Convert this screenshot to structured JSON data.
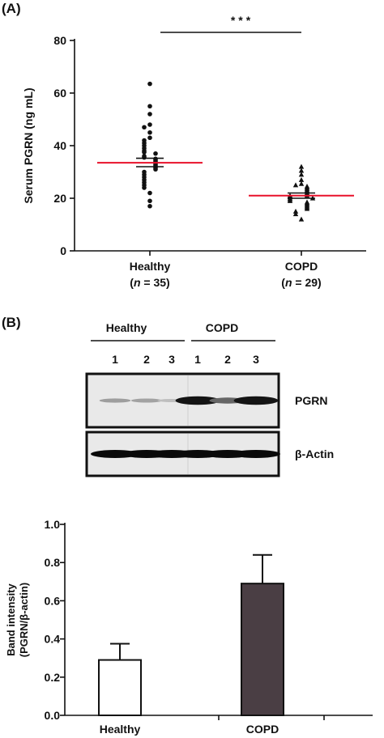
{
  "panel_a": {
    "label": "(A)",
    "significance": "***",
    "chart_data": {
      "type": "scatter",
      "ylabel": "Serum PGRN (ng mL)",
      "ylim": [
        0,
        80
      ],
      "yticks": [
        "0",
        "20",
        "40",
        "60",
        "80"
      ],
      "categories": [
        "Healthy",
        "COPD"
      ],
      "category_sub": [
        {
          "prefix": "(",
          "italic": "n",
          "suffix": " = 35)"
        },
        {
          "prefix": "(",
          "italic": "n",
          "suffix": " = 29)"
        }
      ],
      "series": [
        {
          "category": "Healthy",
          "marker": "circle",
          "mean": 33.5,
          "sem_low": 32.0,
          "sem_high": 35.2,
          "values": [
            63.5,
            55,
            52,
            48,
            47,
            45,
            43,
            42,
            41,
            40,
            39,
            38,
            37.5,
            37,
            36,
            35.5,
            35,
            34.5,
            34,
            33.5,
            33,
            32.5,
            32,
            31.5,
            31,
            30,
            29,
            28,
            27,
            26,
            25,
            24,
            22,
            19,
            17
          ]
        },
        {
          "category": "COPD",
          "marker": "triangle",
          "mean": 21.0,
          "sem_low": 20.0,
          "sem_high": 22.0,
          "values": [
            32,
            30.5,
            29,
            27,
            25.5,
            25,
            24.5,
            24,
            23.5,
            23,
            22.5,
            22,
            21.5,
            21,
            21,
            20.5,
            20,
            20,
            19.5,
            19,
            18.5,
            18,
            17.5,
            17,
            16.5,
            16,
            15,
            14,
            12
          ]
        }
      ]
    }
  },
  "panel_b": {
    "label": "(B)",
    "group_labels": [
      "Healthy",
      "COPD"
    ],
    "lane_labels": [
      "1",
      "2",
      "3",
      "1",
      "2",
      "3"
    ],
    "blots": [
      {
        "name": "PGRN",
        "intensities": [
          0.28,
          0.26,
          0.12,
          0.95,
          0.55,
          0.95
        ]
      },
      {
        "name": "β-Actin",
        "intensities": [
          1,
          1,
          1,
          1,
          1,
          1
        ]
      }
    ],
    "chart_data": {
      "type": "bar",
      "categories": [
        "Healthy",
        "COPD"
      ],
      "values": [
        0.29,
        0.69
      ],
      "errors": [
        0.085,
        0.15
      ],
      "ylabel_line1": "Band intensity",
      "ylabel_line2": "(PGRN/β-actin)",
      "ylim": [
        0,
        1.0
      ],
      "yticks": [
        "0.0",
        "0.2",
        "0.4",
        "0.6",
        "0.8",
        "1.0"
      ],
      "colors": [
        "#ffffff",
        "#4a3e44"
      ]
    }
  }
}
